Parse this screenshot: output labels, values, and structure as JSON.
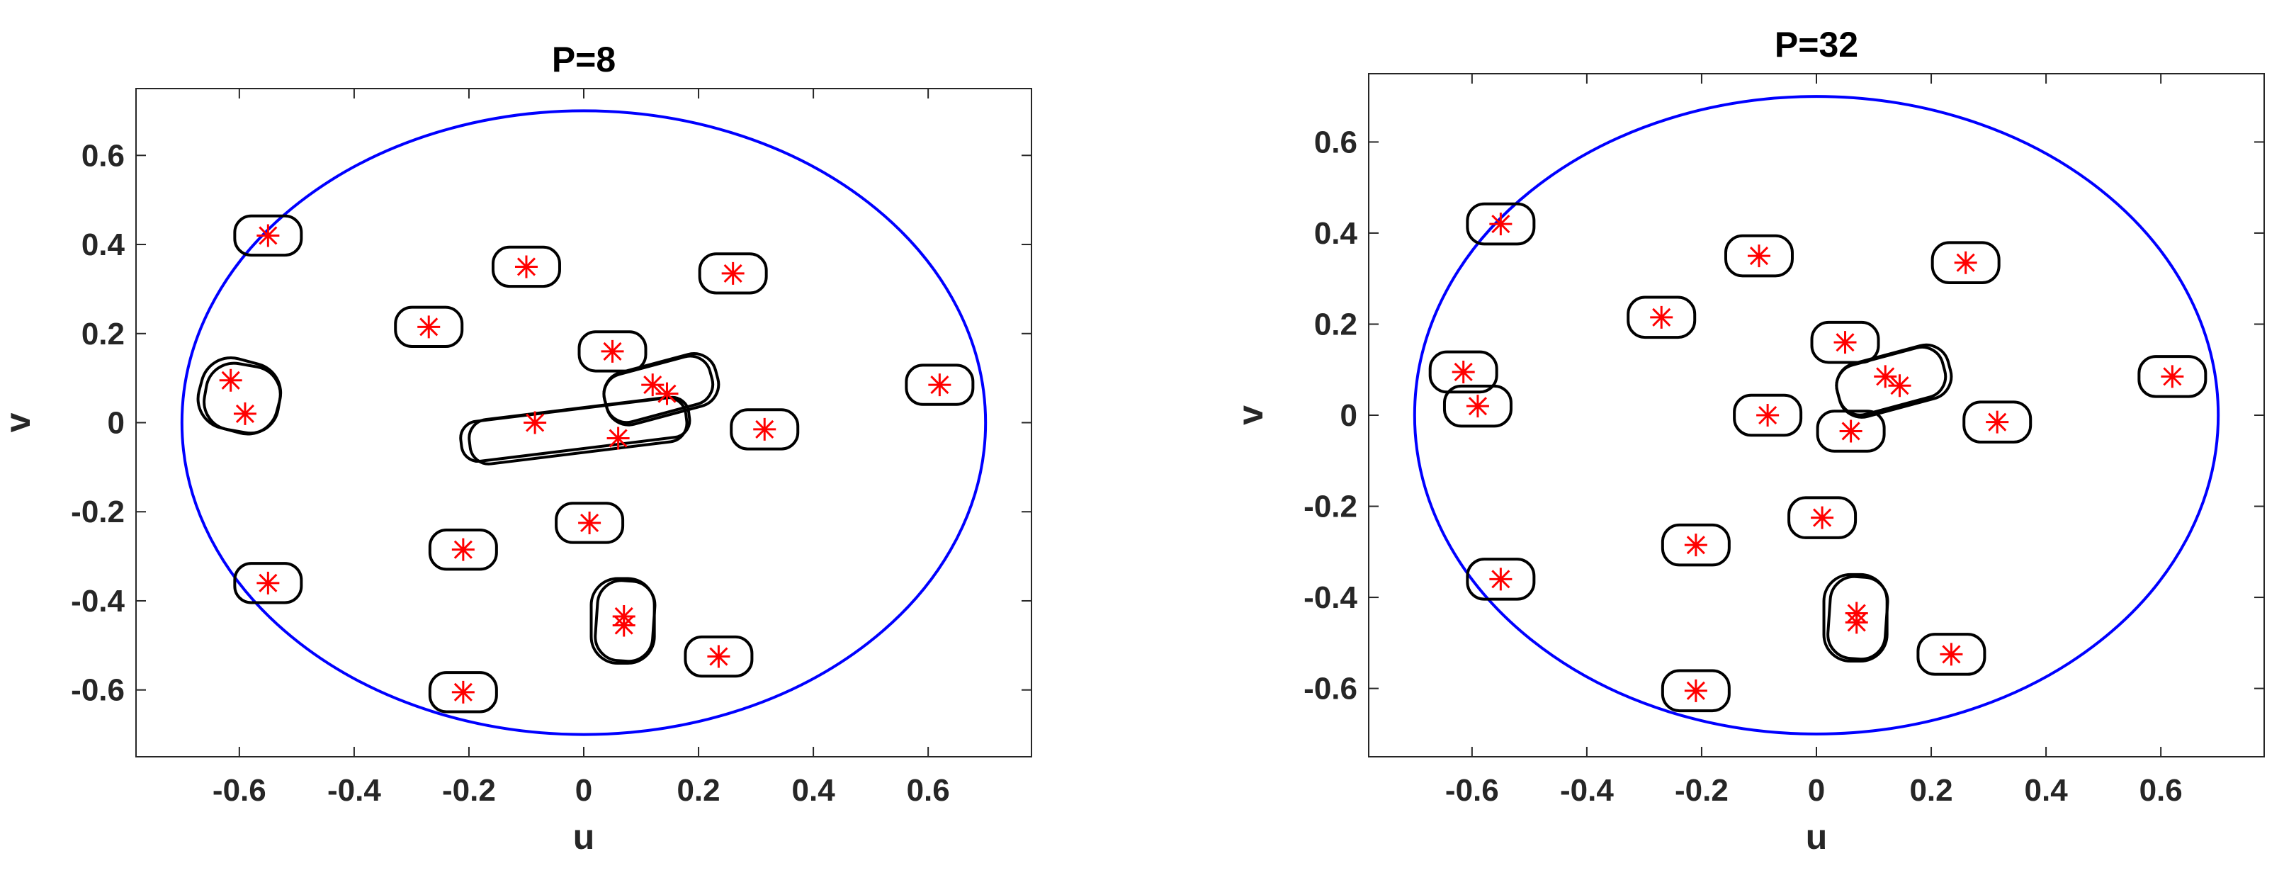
{
  "chart_data": [
    {
      "type": "scatter",
      "title": "P=8",
      "xlabel": "u",
      "ylabel": "v",
      "xlim": [
        -0.78,
        0.78
      ],
      "ylim": [
        -0.75,
        0.75
      ],
      "xticks": [
        -0.6,
        -0.4,
        -0.2,
        0,
        0.2,
        0.4,
        0.6
      ],
      "xtick_labels": [
        "-0.6",
        "-0.4",
        "-0.2",
        "0",
        "0.2",
        "0.4",
        "0.6"
      ],
      "yticks": [
        0.6,
        0.4,
        0.2,
        0,
        -0.2,
        -0.4,
        -0.6
      ],
      "ytick_labels": [
        "0.6",
        "0.4",
        "0.2",
        "0",
        "-0.2",
        "-0.4",
        "-0.6"
      ],
      "grid": false,
      "circle": {
        "radius": 0.7,
        "color": "#0000ff"
      },
      "marker_color": "#ff0000",
      "contour_color": "#000000",
      "points": [
        {
          "x": -0.55,
          "y": 0.42
        },
        {
          "x": -0.1,
          "y": 0.35
        },
        {
          "x": 0.26,
          "y": 0.335
        },
        {
          "x": -0.27,
          "y": 0.215
        },
        {
          "x": 0.05,
          "y": 0.16
        },
        {
          "x": 0.12,
          "y": 0.085
        },
        {
          "x": 0.145,
          "y": 0.065
        },
        {
          "x": -0.615,
          "y": 0.095
        },
        {
          "x": -0.59,
          "y": 0.02
        },
        {
          "x": 0.62,
          "y": 0.085
        },
        {
          "x": 0.315,
          "y": -0.015
        },
        {
          "x": -0.085,
          "y": 0.0
        },
        {
          "x": 0.06,
          "y": -0.035
        },
        {
          "x": 0.01,
          "y": -0.225
        },
        {
          "x": -0.21,
          "y": -0.285
        },
        {
          "x": -0.55,
          "y": -0.36
        },
        {
          "x": 0.07,
          "y": -0.435
        },
        {
          "x": 0.07,
          "y": -0.455
        },
        {
          "x": 0.235,
          "y": -0.525
        },
        {
          "x": -0.21,
          "y": -0.605
        }
      ],
      "contours": [
        {
          "cx": -0.55,
          "cy": 0.42,
          "rx": 0.058,
          "ry": 0.044,
          "angle": 0
        },
        {
          "cx": -0.1,
          "cy": 0.35,
          "rx": 0.058,
          "ry": 0.044,
          "angle": 0
        },
        {
          "cx": 0.26,
          "cy": 0.335,
          "rx": 0.058,
          "ry": 0.044,
          "angle": 0
        },
        {
          "cx": -0.27,
          "cy": 0.215,
          "rx": 0.058,
          "ry": 0.044,
          "angle": 0
        },
        {
          "cx": 0.05,
          "cy": 0.16,
          "rx": 0.058,
          "ry": 0.044,
          "angle": 0
        },
        {
          "cx": 0.135,
          "cy": 0.075,
          "rx": 0.1,
          "ry": 0.06,
          "angle": -15
        },
        {
          "cx": 0.13,
          "cy": 0.075,
          "rx": 0.095,
          "ry": 0.055,
          "angle": -15
        },
        {
          "cx": -0.6,
          "cy": 0.06,
          "rx": 0.07,
          "ry": 0.08,
          "angle": 15
        },
        {
          "cx": -0.595,
          "cy": 0.055,
          "rx": 0.065,
          "ry": 0.075,
          "angle": 10
        },
        {
          "cx": 0.62,
          "cy": 0.085,
          "rx": 0.058,
          "ry": 0.044,
          "angle": 0
        },
        {
          "cx": 0.315,
          "cy": -0.015,
          "rx": 0.058,
          "ry": 0.044,
          "angle": 0
        },
        {
          "cx": -0.015,
          "cy": -0.015,
          "rx": 0.2,
          "ry": 0.045,
          "angle": -7
        },
        {
          "cx": -0.01,
          "cy": -0.018,
          "rx": 0.19,
          "ry": 0.05,
          "angle": -7
        },
        {
          "cx": 0.01,
          "cy": -0.225,
          "rx": 0.058,
          "ry": 0.044,
          "angle": 0
        },
        {
          "cx": -0.21,
          "cy": -0.285,
          "rx": 0.058,
          "ry": 0.044,
          "angle": 0
        },
        {
          "cx": -0.55,
          "cy": -0.36,
          "rx": 0.058,
          "ry": 0.044,
          "angle": 0
        },
        {
          "cx": 0.068,
          "cy": -0.445,
          "rx": 0.055,
          "ry": 0.095,
          "angle": 0
        },
        {
          "cx": 0.072,
          "cy": -0.445,
          "rx": 0.05,
          "ry": 0.09,
          "angle": 4
        },
        {
          "cx": 0.235,
          "cy": -0.525,
          "rx": 0.058,
          "ry": 0.044,
          "angle": 0
        },
        {
          "cx": -0.21,
          "cy": -0.605,
          "rx": 0.058,
          "ry": 0.044,
          "angle": 0
        }
      ]
    },
    {
      "type": "scatter",
      "title": "P=32",
      "xlabel": "u",
      "ylabel": "v",
      "xlim": [
        -0.78,
        0.78
      ],
      "ylim": [
        -0.75,
        0.75
      ],
      "xticks": [
        -0.6,
        -0.4,
        -0.2,
        0,
        0.2,
        0.4,
        0.6
      ],
      "xtick_labels": [
        "-0.6",
        "-0.4",
        "-0.2",
        "0",
        "0.2",
        "0.4",
        "0.6"
      ],
      "yticks": [
        0.6,
        0.4,
        0.2,
        0,
        -0.2,
        -0.4,
        -0.6
      ],
      "ytick_labels": [
        "0.6",
        "0.4",
        "0.2",
        "0",
        "-0.2",
        "-0.4",
        "-0.6"
      ],
      "grid": false,
      "circle": {
        "radius": 0.7,
        "color": "#0000ff"
      },
      "marker_color": "#ff0000",
      "contour_color": "#000000",
      "points": [
        {
          "x": -0.55,
          "y": 0.42
        },
        {
          "x": -0.1,
          "y": 0.35
        },
        {
          "x": 0.26,
          "y": 0.335
        },
        {
          "x": -0.27,
          "y": 0.215
        },
        {
          "x": 0.05,
          "y": 0.16
        },
        {
          "x": 0.12,
          "y": 0.085
        },
        {
          "x": 0.145,
          "y": 0.065
        },
        {
          "x": -0.615,
          "y": 0.095
        },
        {
          "x": -0.59,
          "y": 0.02
        },
        {
          "x": 0.62,
          "y": 0.085
        },
        {
          "x": 0.315,
          "y": -0.015
        },
        {
          "x": -0.085,
          "y": 0.0
        },
        {
          "x": 0.06,
          "y": -0.035
        },
        {
          "x": 0.01,
          "y": -0.225
        },
        {
          "x": -0.21,
          "y": -0.285
        },
        {
          "x": -0.55,
          "y": -0.36
        },
        {
          "x": 0.07,
          "y": -0.435
        },
        {
          "x": 0.07,
          "y": -0.455
        },
        {
          "x": 0.235,
          "y": -0.525
        },
        {
          "x": -0.21,
          "y": -0.605
        }
      ],
      "contours": [
        {
          "cx": -0.55,
          "cy": 0.42,
          "rx": 0.058,
          "ry": 0.044,
          "angle": 0
        },
        {
          "cx": -0.1,
          "cy": 0.35,
          "rx": 0.058,
          "ry": 0.044,
          "angle": 0
        },
        {
          "cx": 0.26,
          "cy": 0.335,
          "rx": 0.058,
          "ry": 0.044,
          "angle": 0
        },
        {
          "cx": -0.27,
          "cy": 0.215,
          "rx": 0.058,
          "ry": 0.044,
          "angle": 0
        },
        {
          "cx": 0.05,
          "cy": 0.16,
          "rx": 0.058,
          "ry": 0.044,
          "angle": 0
        },
        {
          "cx": 0.135,
          "cy": 0.075,
          "rx": 0.1,
          "ry": 0.06,
          "angle": -15
        },
        {
          "cx": 0.13,
          "cy": 0.075,
          "rx": 0.095,
          "ry": 0.056,
          "angle": -15
        },
        {
          "cx": -0.615,
          "cy": 0.095,
          "rx": 0.058,
          "ry": 0.044,
          "angle": 0
        },
        {
          "cx": -0.59,
          "cy": 0.02,
          "rx": 0.058,
          "ry": 0.044,
          "angle": 0
        },
        {
          "cx": 0.62,
          "cy": 0.085,
          "rx": 0.058,
          "ry": 0.044,
          "angle": 0
        },
        {
          "cx": 0.315,
          "cy": -0.015,
          "rx": 0.058,
          "ry": 0.044,
          "angle": 0
        },
        {
          "cx": -0.085,
          "cy": 0.0,
          "rx": 0.058,
          "ry": 0.044,
          "angle": 0
        },
        {
          "cx": 0.06,
          "cy": -0.035,
          "rx": 0.058,
          "ry": 0.044,
          "angle": 0
        },
        {
          "cx": 0.01,
          "cy": -0.225,
          "rx": 0.058,
          "ry": 0.044,
          "angle": 0
        },
        {
          "cx": -0.21,
          "cy": -0.285,
          "rx": 0.058,
          "ry": 0.044,
          "angle": 0
        },
        {
          "cx": -0.55,
          "cy": -0.36,
          "rx": 0.058,
          "ry": 0.044,
          "angle": 0
        },
        {
          "cx": 0.068,
          "cy": -0.445,
          "rx": 0.055,
          "ry": 0.095,
          "angle": 0
        },
        {
          "cx": 0.072,
          "cy": -0.445,
          "rx": 0.05,
          "ry": 0.09,
          "angle": 4
        },
        {
          "cx": 0.235,
          "cy": -0.525,
          "rx": 0.058,
          "ry": 0.044,
          "angle": 0
        },
        {
          "cx": -0.21,
          "cy": -0.605,
          "rx": 0.058,
          "ry": 0.044,
          "angle": 0
        }
      ]
    }
  ]
}
